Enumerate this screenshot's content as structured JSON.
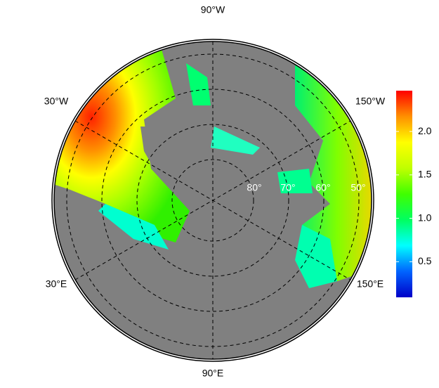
{
  "map": {
    "meridian_labels": [
      "90°W",
      "30°W",
      "150°W",
      "30°E",
      "150°E",
      "90°E"
    ],
    "latitude_labels": [
      "80°",
      "70°",
      "60°",
      "50°"
    ],
    "colorbar": {
      "clim": [
        0.09,
        2.47
      ],
      "ticks": [
        0.5,
        {
          "value": 1.0,
          "label": "1.0"
        },
        1.5,
        {
          "value": 2.0,
          "label": "2.0"
        }
      ],
      "colors": [
        "#0000c8",
        "#0064ff",
        "#00ffff",
        "#00ff60",
        "#40ff00",
        "#c0ff00",
        "#ffff00",
        "#ff9000",
        "#ff0000"
      ]
    }
  }
}
